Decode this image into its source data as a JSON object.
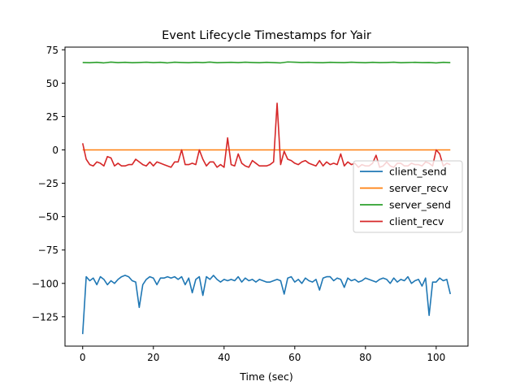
{
  "chart_data": {
    "type": "line",
    "title": "Event Lifecycle Timestamps for Yair",
    "xlabel": "Time (sec)",
    "ylabel": "",
    "xlim": [
      -5,
      109
    ],
    "ylim": [
      -147,
      77
    ],
    "xticks": [
      0,
      20,
      40,
      60,
      80,
      100
    ],
    "yticks": [
      -125,
      -100,
      -75,
      -50,
      -25,
      0,
      25,
      50,
      75
    ],
    "grid": false,
    "legend_position": "center-right",
    "series": [
      {
        "name": "client_send",
        "color": "#1f77b4",
        "x": [
          0,
          1,
          2,
          3,
          4,
          5,
          6,
          7,
          8,
          9,
          10,
          11,
          12,
          13,
          14,
          15,
          16,
          17,
          18,
          19,
          20,
          21,
          22,
          23,
          24,
          25,
          26,
          27,
          28,
          29,
          30,
          31,
          32,
          33,
          34,
          35,
          36,
          37,
          38,
          39,
          40,
          41,
          42,
          43,
          44,
          45,
          46,
          47,
          48,
          49,
          50,
          51,
          52,
          53,
          54,
          55,
          56,
          57,
          58,
          59,
          60,
          61,
          62,
          63,
          64,
          65,
          66,
          67,
          68,
          69,
          70,
          71,
          72,
          73,
          74,
          75,
          76,
          77,
          78,
          79,
          80,
          81,
          82,
          83,
          84,
          85,
          86,
          87,
          88,
          89,
          90,
          91,
          92,
          93,
          94,
          95,
          96,
          97,
          98,
          99,
          100,
          101,
          102,
          103,
          104
        ],
        "values": [
          -138,
          -95,
          -98,
          -96,
          -101,
          -95,
          -97,
          -101,
          -98,
          -100,
          -97,
          -95,
          -94,
          -95,
          -98,
          -99,
          -118,
          -101,
          -97,
          -95,
          -96,
          -101,
          -96,
          -96,
          -95,
          -96,
          -95,
          -97,
          -95,
          -101,
          -96,
          -107,
          -97,
          -95,
          -109,
          -95,
          -97,
          -94,
          -97,
          -99,
          -97,
          -98,
          -97,
          -98,
          -95,
          -99,
          -96,
          -98,
          -97,
          -99,
          -97,
          -98,
          -99,
          -99,
          -98,
          -97,
          -98,
          -108,
          -96,
          -95,
          -99,
          -97,
          -100,
          -96,
          -98,
          -99,
          -97,
          -105,
          -96,
          -95,
          -95,
          -98,
          -96,
          -97,
          -103,
          -96,
          -98,
          -97,
          -99,
          -98,
          -96,
          -97,
          -98,
          -99,
          -97,
          -96,
          -97,
          -100,
          -96,
          -99,
          -97,
          -98,
          -95,
          -100,
          -98,
          -97,
          -102,
          -96,
          -124,
          -99,
          -99,
          -96,
          -98,
          -97,
          -108
        ]
      },
      {
        "name": "server_recv",
        "color": "#ff7f0e",
        "x": [
          0,
          104
        ],
        "values": [
          0,
          0
        ]
      },
      {
        "name": "server_send",
        "color": "#2ca02c",
        "x": [
          0,
          2,
          4,
          6,
          8,
          10,
          12,
          14,
          16,
          18,
          20,
          22,
          24,
          26,
          28,
          30,
          32,
          34,
          36,
          38,
          40,
          42,
          44,
          46,
          48,
          50,
          52,
          54,
          56,
          58,
          60,
          62,
          64,
          66,
          68,
          70,
          72,
          74,
          76,
          78,
          80,
          82,
          84,
          86,
          88,
          90,
          92,
          94,
          96,
          98,
          100,
          102,
          104
        ],
        "values": [
          65.5,
          65.3,
          65.6,
          65.2,
          65.8,
          65.4,
          65.6,
          65.3,
          65.5,
          65.7,
          65.4,
          65.6,
          65.2,
          65.7,
          65.5,
          65.3,
          65.6,
          65.4,
          65.8,
          65.3,
          65.5,
          65.6,
          65.4,
          65.7,
          65.5,
          65.3,
          65.6,
          65.4,
          65.2,
          65.9,
          65.7,
          65.5,
          65.6,
          65.4,
          65.3,
          65.6,
          65.5,
          65.4,
          65.7,
          65.5,
          65.3,
          65.6,
          65.4,
          65.5,
          65.7,
          65.3,
          65.5,
          65.6,
          65.4,
          65.5,
          65.2,
          65.6,
          65.4
        ]
      },
      {
        "name": "client_recv",
        "color": "#d62728",
        "x": [
          0,
          1,
          2,
          3,
          4,
          5,
          6,
          7,
          8,
          9,
          10,
          11,
          12,
          13,
          14,
          15,
          16,
          17,
          18,
          19,
          20,
          21,
          22,
          23,
          24,
          25,
          26,
          27,
          28,
          29,
          30,
          31,
          32,
          33,
          34,
          35,
          36,
          37,
          38,
          39,
          40,
          41,
          42,
          43,
          44,
          45,
          46,
          47,
          48,
          49,
          50,
          51,
          52,
          53,
          54,
          55,
          56,
          57,
          58,
          59,
          60,
          61,
          62,
          63,
          64,
          65,
          66,
          67,
          68,
          69,
          70,
          71,
          72,
          73,
          74,
          75,
          76,
          77,
          78,
          79,
          80,
          81,
          82,
          83,
          84,
          85,
          86,
          87,
          88,
          89,
          90,
          91,
          92,
          93,
          94,
          95,
          96,
          97,
          98,
          99,
          100,
          101,
          102,
          103,
          104
        ],
        "values": [
          5,
          -7,
          -11,
          -12,
          -9,
          -10,
          -12,
          -5,
          -6,
          -12,
          -10,
          -12,
          -12,
          -11,
          -11,
          -7,
          -9,
          -11,
          -12,
          -9,
          -12,
          -9,
          -10,
          -11,
          -12,
          -13,
          -9,
          -9,
          0,
          -11,
          -11,
          -10,
          -11,
          0,
          -7,
          -12,
          -9,
          -9,
          -13,
          -11,
          -13,
          9,
          -11,
          -12,
          -3,
          -10,
          -12,
          -13,
          -8,
          -10,
          -12,
          -12,
          -12,
          -11,
          -9,
          35,
          -11,
          -1,
          -7,
          -8,
          -10,
          -11,
          -9,
          -8,
          -10,
          -11,
          -12,
          -8,
          -12,
          -9,
          -11,
          -10,
          -11,
          -3,
          -12,
          -9,
          -11,
          -10,
          -13,
          -11,
          -12,
          -12,
          -10,
          -4,
          -13,
          -12,
          -9,
          -12,
          -13,
          -10,
          -10,
          -12,
          -12,
          -10,
          -11,
          -11,
          -12,
          -9,
          -10,
          -12,
          0,
          -3,
          -12,
          -10,
          -11
        ]
      }
    ]
  }
}
